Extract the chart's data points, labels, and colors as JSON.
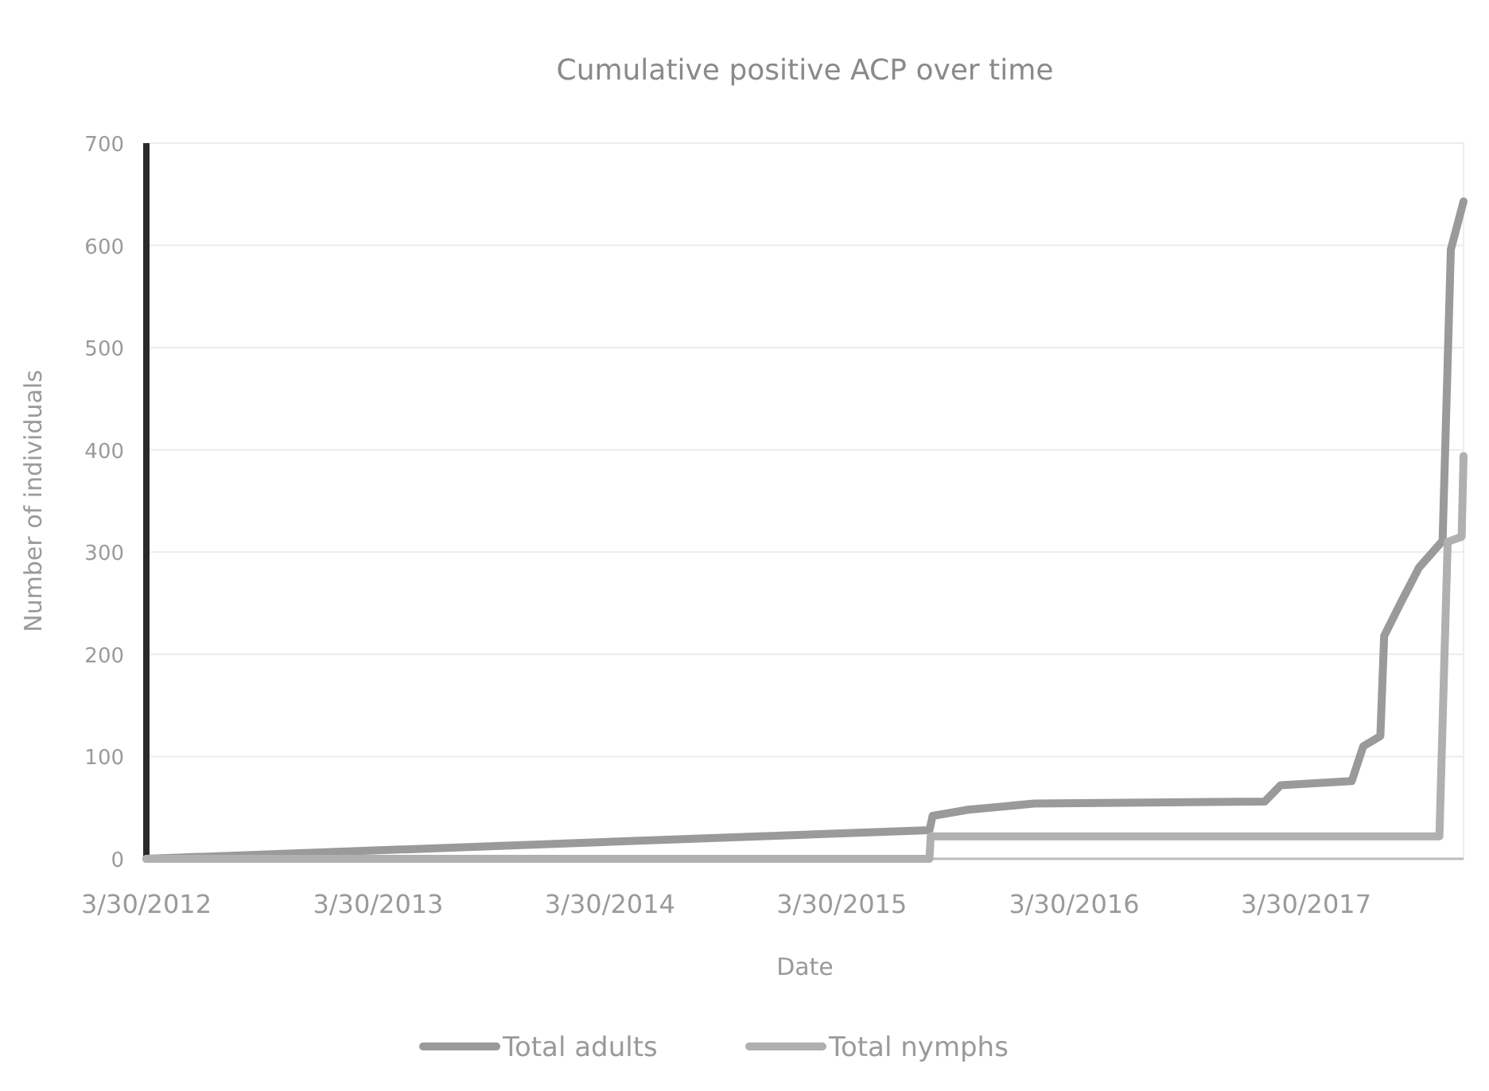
{
  "chart_data": {
    "type": "line",
    "title": "Cumulative positive ACP over time",
    "xlabel": "Date",
    "ylabel": "Number of individuals",
    "xlim": [
      "2012-03-30",
      "2017-12-03"
    ],
    "xticks": [
      {
        "value": "2012-03-30",
        "label": "3/30/2012"
      },
      {
        "value": "2013-03-30",
        "label": "3/30/2013"
      },
      {
        "value": "2014-03-30",
        "label": "3/30/2014"
      },
      {
        "value": "2015-03-30",
        "label": "3/30/2015"
      },
      {
        "value": "2016-03-30",
        "label": "3/30/2016"
      },
      {
        "value": "2017-03-30",
        "label": "3/30/2017"
      }
    ],
    "ylim": [
      0,
      700
    ],
    "yticks": [
      0,
      100,
      200,
      300,
      400,
      500,
      600,
      700
    ],
    "grid": "y",
    "legend": "bottom",
    "series": [
      {
        "name": "Total adults",
        "color": "#9a9a9a",
        "x": [
          "2012-03-30",
          "2015-08-15",
          "2015-08-20",
          "2015-10-15",
          "2016-01-27",
          "2017-01-24",
          "2017-02-18",
          "2017-06-10",
          "2017-06-28",
          "2017-07-25",
          "2017-07-31",
          "2017-08-25",
          "2017-09-24",
          "2017-10-31",
          "2017-11-13",
          "2017-12-03"
        ],
        "values": [
          0,
          28,
          42,
          48,
          54,
          56,
          72,
          76,
          110,
          120,
          218,
          249,
          285,
          311,
          596,
          643
        ]
      },
      {
        "name": "Total nymphs",
        "color": "#b0b0b0",
        "x": [
          "2012-03-30",
          "2015-08-15",
          "2015-08-17",
          "2017-10-26",
          "2017-11-08",
          "2017-11-30",
          "2017-12-03"
        ],
        "values": [
          0,
          0,
          22,
          22,
          310,
          315,
          394
        ]
      }
    ]
  }
}
